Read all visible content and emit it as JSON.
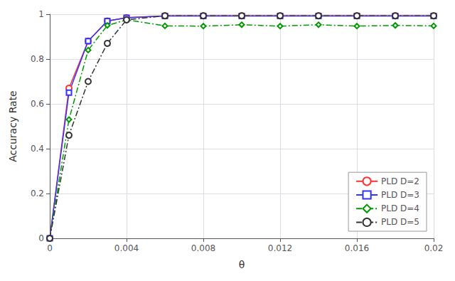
{
  "chart_data": {
    "type": "line",
    "xlabel": "θ",
    "ylabel": "Accuracy Rate",
    "x": [
      0,
      0.001,
      0.002,
      0.003,
      0.004,
      0.006,
      0.008,
      0.01,
      0.012,
      0.014,
      0.016,
      0.018,
      0.02
    ],
    "series": [
      {
        "name": "PLD D=2",
        "color": "#FF3333",
        "marker": "circle",
        "line_style": "solid",
        "values": [
          0.0,
          0.67,
          0.88,
          0.97,
          0.985,
          0.993,
          0.993,
          0.993,
          0.993,
          0.993,
          0.993,
          0.993,
          0.993
        ]
      },
      {
        "name": "PLD D=3",
        "color": "#3333FF",
        "marker": "square",
        "line_style": "solid",
        "values": [
          0.0,
          0.65,
          0.88,
          0.97,
          0.984,
          0.992,
          0.992,
          0.992,
          0.992,
          0.992,
          0.992,
          0.992,
          0.992
        ]
      },
      {
        "name": "PLD D=4",
        "color": "#009900",
        "marker": "diamond",
        "line_style": "dashdot",
        "values": [
          0.0,
          0.53,
          0.84,
          0.95,
          0.975,
          0.948,
          0.947,
          0.953,
          0.947,
          0.953,
          0.947,
          0.95,
          0.948
        ]
      },
      {
        "name": "PLD D=5",
        "color": "#333333",
        "marker": "circle",
        "line_style": "dashdot",
        "values": [
          0.0,
          0.46,
          0.7,
          0.87,
          0.975,
          0.993,
          0.993,
          0.993,
          0.993,
          0.993,
          0.993,
          0.993,
          0.993
        ]
      }
    ],
    "xlim": [
      0,
      0.02
    ],
    "ylim": [
      0,
      1
    ],
    "xticks": [
      0,
      0.004,
      0.008,
      0.012,
      0.016,
      0.02
    ],
    "yticks": [
      0,
      0.2,
      0.4,
      0.6,
      0.8,
      1
    ],
    "grid": true,
    "legend": "lower right"
  }
}
